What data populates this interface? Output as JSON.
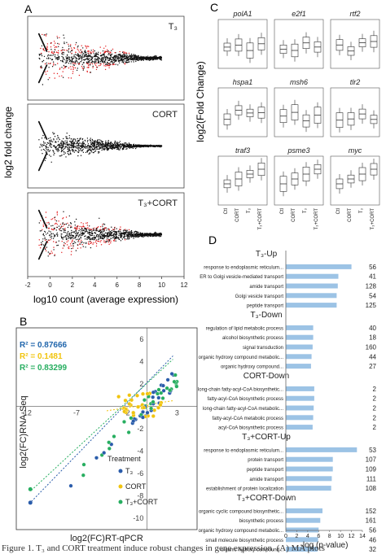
{
  "panel_labels": {
    "a": "A",
    "b": "B",
    "c": "C",
    "d": "D"
  },
  "panel_a": {
    "ylabel": "log2 fold change",
    "xlabel": "log10 count (average expression)",
    "xticks": [
      "-2",
      "0",
      "2",
      "4",
      "6",
      "8",
      "10",
      "12"
    ],
    "facets": [
      {
        "label": "T₃",
        "color_sig": "#e41a1c"
      },
      {
        "label": "CORT",
        "color_sig": "#000000"
      },
      {
        "label": "T₃+CORT",
        "color_sig": "#e41a1c"
      }
    ]
  },
  "panel_b": {
    "ylabel": "log2(FC)RNA-Seq",
    "xlabel": "log2(FC)RT-qPCR",
    "xticks": [
      "-12",
      "-7",
      "-2",
      "3"
    ],
    "yticks": [
      "6",
      "4",
      "2",
      "-2",
      "-4",
      "-6",
      "-8",
      "-10"
    ],
    "r2": [
      {
        "text": "R² = 0.87666",
        "color": "#2166ac"
      },
      {
        "text": "R² = 0.1481",
        "color": "#f1c40f"
      },
      {
        "text": "R² = 0.83299",
        "color": "#27ae60"
      }
    ],
    "legend_title": "Treatment",
    "legend": [
      {
        "label": "T₃",
        "color": "#2a5caa"
      },
      {
        "label": "CORT",
        "color": "#f1c40f"
      },
      {
        "label": "T₃+CORT",
        "color": "#27ae60"
      }
    ]
  },
  "panel_c": {
    "ylabel": "log2(Fold Change)",
    "genes": [
      "polA1",
      "e2f1",
      "rtf2",
      "hspa1",
      "msh6",
      "tlr2",
      "traf3",
      "psme3",
      "myc"
    ],
    "xcats": [
      "Ctl",
      "CORT",
      "T₃",
      "T₃+CORT"
    ]
  },
  "chart_data": {
    "type": "bar",
    "title": "",
    "xlabel": "-log (p-value)",
    "xticks": [
      0,
      2,
      4,
      6,
      8,
      10,
      12,
      14
    ],
    "xlim": [
      0,
      14
    ],
    "groups": [
      {
        "name": "T₃-Up",
        "items": [
          {
            "label": "response to endoplasmic reticulum...",
            "value": 12.0,
            "count": "56"
          },
          {
            "label": "ER to Golgi vesicle-mediated transport",
            "value": 9.6,
            "count": "41"
          },
          {
            "label": "amide transport",
            "value": 9.5,
            "count": "128"
          },
          {
            "label": "Golgi vesicle transport",
            "value": 9.3,
            "count": "54"
          },
          {
            "label": "peptide transport",
            "value": 9.3,
            "count": "125"
          }
        ]
      },
      {
        "name": "T₃-Down",
        "items": [
          {
            "label": "regulation of lipid metabolic process",
            "value": 5.0,
            "count": "40"
          },
          {
            "label": "alcohol biosynthetic process",
            "value": 5.0,
            "count": "18"
          },
          {
            "label": "signal transduction",
            "value": 4.9,
            "count": "160"
          },
          {
            "label": "organic hydroxy compound metabolic...",
            "value": 4.7,
            "count": "44"
          },
          {
            "label": "organic hydroxy compound...",
            "value": 4.6,
            "count": "27"
          }
        ]
      },
      {
        "name": "CORT-Down",
        "items": [
          {
            "label": "long-chain fatty-acyl-CoA biosynthetic...",
            "value": 5.2,
            "count": "2"
          },
          {
            "label": "fatty-acyl-CoA biosynthetic process",
            "value": 5.2,
            "count": "2"
          },
          {
            "label": "long-chain fatty-acyl-CoA metabolic...",
            "value": 5.1,
            "count": "2"
          },
          {
            "label": "fatty-acyl-CoA metabolic process",
            "value": 5.0,
            "count": "2"
          },
          {
            "label": "acyl-CoA biosynthetic process",
            "value": 4.9,
            "count": "2"
          }
        ]
      },
      {
        "name": "T₃+CORT-Up",
        "items": [
          {
            "label": "response to endoplasmic reticulum...",
            "value": 13.0,
            "count": "53"
          },
          {
            "label": "protein transport",
            "value": 8.6,
            "count": "107"
          },
          {
            "label": "peptide transport",
            "value": 8.6,
            "count": "109"
          },
          {
            "label": "amide transport",
            "value": 8.4,
            "count": "111"
          },
          {
            "label": "establishment of protein localization",
            "value": 8.3,
            "count": "108"
          }
        ]
      },
      {
        "name": "T₃+CORT-Down",
        "items": [
          {
            "label": "organic cyclic compound biosynthetic...",
            "value": 6.7,
            "count": "152"
          },
          {
            "label": "biosynthetic process",
            "value": 6.3,
            "count": "161"
          },
          {
            "label": "organic hydroxy compound metabolic...",
            "value": 6.0,
            "count": "56"
          },
          {
            "label": "small molecule biosynthetic process",
            "value": 5.9,
            "count": "46"
          },
          {
            "label": "organic hydroxy compound...",
            "value": 5.8,
            "count": "32"
          }
        ]
      }
    ]
  },
  "caption": "Figure 1.  T₃ and CORT treatment induce robust changes in gene expression. (A) MA plots"
}
